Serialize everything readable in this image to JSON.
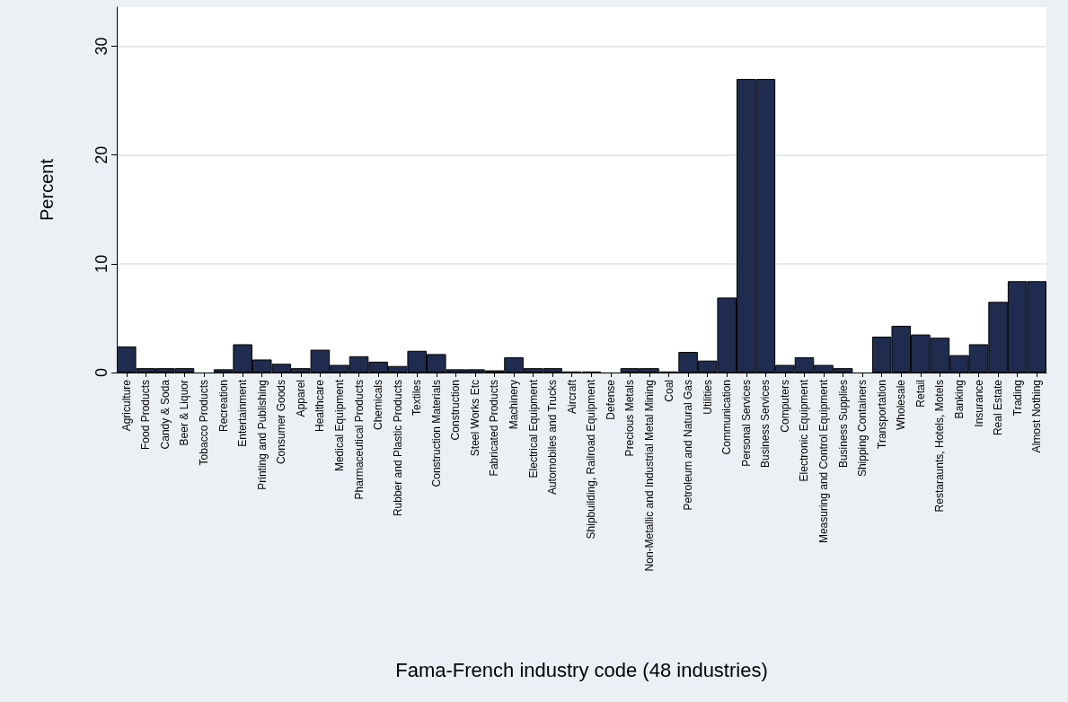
{
  "chart_data": {
    "type": "bar",
    "xlabel": "Fama-French industry code (48 industries)",
    "ylabel": "Percent",
    "categories": [
      "Agriculture",
      "Food Products",
      "Candy & Soda",
      "Beer & Liquor",
      "Tobacco Products",
      "Recreation",
      "Entertainment",
      "Printing and Publishing",
      "Consumer Goods",
      "Apparel",
      "Healthcare",
      "Medical Equipment",
      "Pharmaceutical Products",
      "Chemicals",
      "Rubber and Plastic Products",
      "Textiles",
      "Construction Materials",
      "Construction",
      "Steel Works Etc",
      "Fabricated Products",
      "Machinery",
      "Electrical Equipment",
      "Automobiles and Trucks",
      "Aircraft",
      "Shipbuilding, Railroad Equipment",
      "Defense",
      "Precious Metals",
      "Non-Metallic and Industrial Metal Mining",
      "Coal",
      "Petroleum and Natural Gas",
      "Utilities",
      "Communication",
      "Personal Services",
      "Business Services",
      "Computers",
      "Electronic Equipment",
      "Measuring and Control Equipment",
      "Business Supplies",
      "Shipping Containers",
      "Transportation",
      "Wholesale",
      "Retail",
      "Restaraunts, Hotels, Motels",
      "Banking",
      "Insurance",
      "Real Estate",
      "Trading",
      "Almost Nothing"
    ],
    "values": [
      2.4,
      0.4,
      0.4,
      0.4,
      0,
      0.3,
      2.6,
      1.2,
      0.8,
      0.4,
      2.1,
      0.7,
      1.5,
      1.0,
      0.6,
      2.0,
      1.7,
      0.3,
      0.3,
      0.2,
      1.4,
      0.4,
      0.4,
      0.1,
      0.1,
      0,
      0.4,
      0.4,
      0.1,
      1.9,
      1.1,
      6.9,
      27.0,
      27.0,
      0.7,
      1.4,
      0.7,
      0.4,
      0,
      3.3,
      4.3,
      3.5,
      3.2,
      1.6,
      2.6,
      6.5,
      8.4,
      8.4
    ],
    "color": "#1f2c50",
    "ylim": [
      0,
      33.6
    ],
    "yticks": [
      0,
      10,
      20,
      30
    ],
    "grid": "y"
  }
}
